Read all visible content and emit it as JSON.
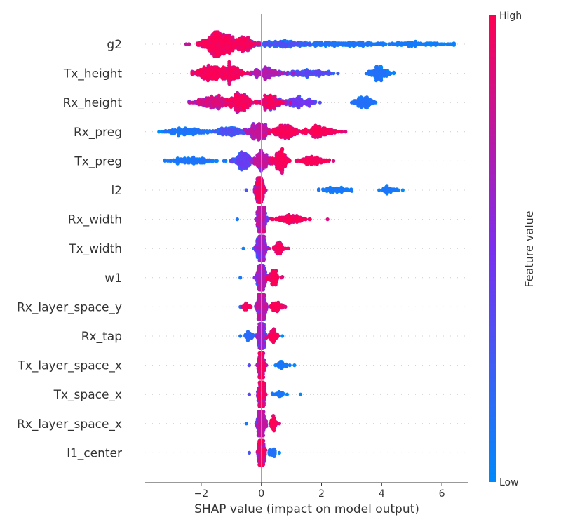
{
  "chart_data": {
    "type": "scatter",
    "subtype": "shap-beeswarm",
    "xlabel": "SHAP value (impact on model output)",
    "xlim": [
      -3.85,
      6.85
    ],
    "xticks": [
      -2,
      0,
      2,
      4,
      6
    ],
    "features": [
      {
        "name": "g2",
        "min": -2.5,
        "max": 6.4,
        "segments": [
          {
            "c": -1.4,
            "w": 0.6,
            "n": 560,
            "lo": 0.75
          },
          {
            "c": -0.6,
            "w": 0.4,
            "n": 200,
            "lo": 0.6
          },
          {
            "c": 0.6,
            "w": 1.0,
            "n": 160,
            "lo": 0.0,
            "hi": 0.35
          },
          {
            "c": 2.5,
            "w": 1.6,
            "n": 170,
            "lo": 0.0,
            "hi": 0.15
          },
          {
            "c": 5.1,
            "w": 1.3,
            "n": 110,
            "lo": 0.0,
            "hi": 0.1
          }
        ]
      },
      {
        "name": "Tx_height",
        "min": -2.3,
        "max": 4.4,
        "segments": [
          {
            "c": -1.7,
            "w": 0.5,
            "n": 260,
            "lo": 0.7
          },
          {
            "c": -1.0,
            "w": 0.4,
            "n": 220,
            "lo": 0.6
          },
          {
            "c": 0.2,
            "w": 0.5,
            "n": 160,
            "lo": 0.45,
            "hi": 0.75
          },
          {
            "c": 1.5,
            "w": 0.8,
            "n": 140,
            "lo": 0.1,
            "hi": 0.4
          },
          {
            "c": 3.9,
            "w": 0.35,
            "n": 140,
            "lo": 0.0,
            "hi": 0.15
          }
        ]
      },
      {
        "name": "Rx_height",
        "min": -2.4,
        "max": 3.8,
        "segments": [
          {
            "c": -1.6,
            "w": 0.6,
            "n": 240,
            "lo": 0.5,
            "hi": 0.9
          },
          {
            "c": -0.7,
            "w": 0.4,
            "n": 260,
            "lo": 0.6
          },
          {
            "c": 0.3,
            "w": 0.35,
            "n": 180,
            "lo": 0.55
          },
          {
            "c": 1.2,
            "w": 0.6,
            "n": 160,
            "lo": 0.1,
            "hi": 0.5
          },
          {
            "c": 3.4,
            "w": 0.35,
            "n": 130,
            "lo": 0.0,
            "hi": 0.15
          }
        ]
      },
      {
        "name": "Rx_preg",
        "min": -3.4,
        "max": 2.8,
        "segments": [
          {
            "c": -2.4,
            "w": 0.8,
            "n": 150,
            "lo": 0.0,
            "hi": 0.15
          },
          {
            "c": -1.0,
            "w": 0.5,
            "n": 140,
            "lo": 0.05,
            "hi": 0.35
          },
          {
            "c": -0.1,
            "w": 0.35,
            "n": 220,
            "lo": 0.4,
            "hi": 0.8
          },
          {
            "c": 0.8,
            "w": 0.5,
            "n": 220,
            "lo": 0.75
          },
          {
            "c": 2.0,
            "w": 0.5,
            "n": 170,
            "lo": 0.85
          }
        ]
      },
      {
        "name": "Tx_preg",
        "min": -3.2,
        "max": 2.4,
        "segments": [
          {
            "c": -2.3,
            "w": 0.7,
            "n": 120,
            "lo": 0.0,
            "hi": 0.15
          },
          {
            "c": -0.6,
            "w": 0.3,
            "n": 200,
            "lo": 0.1,
            "hi": 0.45
          },
          {
            "c": 0.0,
            "w": 0.25,
            "n": 180,
            "lo": 0.45,
            "hi": 0.8
          },
          {
            "c": 0.6,
            "w": 0.3,
            "n": 200,
            "lo": 0.75
          },
          {
            "c": 1.7,
            "w": 0.45,
            "n": 110,
            "lo": 0.85
          }
        ]
      },
      {
        "name": "l2",
        "min": -0.5,
        "max": 4.7,
        "segments": [
          {
            "c": -0.05,
            "w": 0.15,
            "n": 260,
            "lo": 0.3,
            "hi": 1.0
          },
          {
            "c": 2.5,
            "w": 0.55,
            "n": 70,
            "lo": 0.0,
            "hi": 0.12
          },
          {
            "c": 4.2,
            "w": 0.3,
            "n": 45,
            "lo": 0.0,
            "hi": 0.12
          }
        ]
      },
      {
        "name": "Rx_width",
        "min": -0.8,
        "max": 2.2,
        "segments": [
          {
            "c": 0.0,
            "w": 0.15,
            "n": 300,
            "lo": 0.1,
            "hi": 0.8
          },
          {
            "c": 0.9,
            "w": 0.55,
            "n": 110,
            "lo": 0.85
          }
        ]
      },
      {
        "name": "Tx_width",
        "min": -0.6,
        "max": 0.9,
        "segments": [
          {
            "c": 0.0,
            "w": 0.15,
            "n": 300,
            "lo": 0.05,
            "hi": 0.7
          },
          {
            "c": 0.6,
            "w": 0.2,
            "n": 80,
            "lo": 0.8
          }
        ]
      },
      {
        "name": "w1",
        "min": -0.7,
        "max": 0.7,
        "segments": [
          {
            "c": 0.0,
            "w": 0.15,
            "n": 300,
            "lo": 0.1,
            "hi": 0.75
          },
          {
            "c": 0.4,
            "w": 0.15,
            "n": 90,
            "lo": 0.8
          }
        ]
      },
      {
        "name": "Rx_layer_space_y",
        "min": -0.7,
        "max": 0.8,
        "segments": [
          {
            "c": 0.0,
            "w": 0.15,
            "n": 300,
            "lo": 0.15,
            "hi": 0.8
          },
          {
            "c": 0.5,
            "w": 0.2,
            "n": 70,
            "lo": 0.85
          },
          {
            "c": -0.5,
            "w": 0.15,
            "n": 30,
            "lo": 0.85
          }
        ]
      },
      {
        "name": "Rx_tap",
        "min": -0.7,
        "max": 0.7,
        "segments": [
          {
            "c": 0.0,
            "w": 0.12,
            "n": 300,
            "lo": 0.1,
            "hi": 0.7
          },
          {
            "c": 0.4,
            "w": 0.15,
            "n": 70,
            "lo": 0.85
          },
          {
            "c": -0.4,
            "w": 0.15,
            "n": 40,
            "lo": 0.0,
            "hi": 0.2
          }
        ]
      },
      {
        "name": "Tx_layer_space_x",
        "min": -0.4,
        "max": 1.1,
        "segments": [
          {
            "c": 0.0,
            "w": 0.1,
            "n": 300,
            "lo": 0.35,
            "hi": 1.0
          },
          {
            "c": 0.7,
            "w": 0.2,
            "n": 40,
            "lo": 0.0,
            "hi": 0.12
          }
        ]
      },
      {
        "name": "Tx_space_x",
        "min": -0.4,
        "max": 1.3,
        "segments": [
          {
            "c": 0.0,
            "w": 0.1,
            "n": 300,
            "lo": 0.35,
            "hi": 1.0
          },
          {
            "c": 0.6,
            "w": 0.2,
            "n": 30,
            "lo": 0.0,
            "hi": 0.12
          }
        ]
      },
      {
        "name": "Rx_layer_space_x",
        "min": -0.5,
        "max": 0.6,
        "segments": [
          {
            "c": 0.0,
            "w": 0.12,
            "n": 300,
            "lo": 0.1,
            "hi": 0.8
          },
          {
            "c": 0.4,
            "w": 0.12,
            "n": 50,
            "lo": 0.85
          }
        ]
      },
      {
        "name": "l1_center",
        "min": -0.4,
        "max": 0.6,
        "segments": [
          {
            "c": 0.0,
            "w": 0.1,
            "n": 300,
            "lo": 0.3,
            "hi": 1.0
          },
          {
            "c": 0.35,
            "w": 0.12,
            "n": 40,
            "lo": 0.0,
            "hi": 0.15
          }
        ]
      }
    ],
    "colorbar": {
      "label": "Feature value",
      "high_label": "High",
      "low_label": "Low",
      "colors": [
        "#008afb",
        "#7b2ef0",
        "#ff0052"
      ]
    },
    "grid": false,
    "zero_line": true
  }
}
